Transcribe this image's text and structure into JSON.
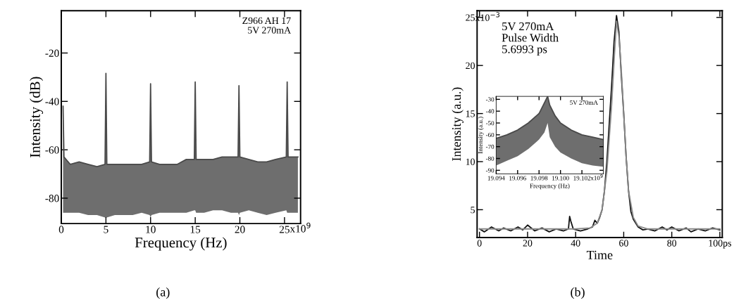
{
  "chart_data": [
    {
      "type": "line",
      "xlabel": "Frequency (Hz)",
      "ylabel": "Intensity (dB)",
      "annotations": [
        "Z966 AH 17\n5V 270mA",
        "x10$^{9}$",
        "(a)"
      ],
      "xlim": [
        0,
        26.8
      ],
      "ylim": [
        -90.5,
        -2.5
      ],
      "xticks": [
        0,
        5,
        10,
        15,
        20,
        25
      ],
      "yticks": [
        -20,
        -40,
        -60,
        -80
      ],
      "series": [
        {
          "color": "#4a4a4a",
          "x": [
            0.2,
            0.3,
            1,
            2,
            3,
            4,
            4.9,
            5.0,
            5.1,
            6,
            7,
            8,
            9,
            9.9,
            10.0,
            10.1,
            11,
            12,
            13,
            14,
            14.9,
            15.0,
            15.1,
            16,
            17,
            18,
            19,
            19.8,
            19.9,
            20.0,
            21,
            22,
            23,
            24,
            25.2,
            25.3,
            25.4,
            26.5
          ],
          "values": [
            -42,
            -63,
            -66,
            -65,
            -66,
            -67,
            -66,
            -28.4,
            -66,
            -66,
            -66,
            -66,
            -66,
            -65,
            -32.7,
            -65,
            -66,
            -66,
            -66,
            -64,
            -64,
            -32,
            -64,
            -64,
            -64,
            -63,
            -63,
            -63,
            -33.5,
            -63,
            -64,
            -65,
            -65,
            -64,
            -63,
            -32,
            -63,
            -63
          ],
          "upper": [
            -42,
            -63,
            -66,
            -65,
            -66,
            -67,
            -66,
            -28.4,
            -66,
            -66,
            -66,
            -66,
            -66,
            -65,
            -32.7,
            -65,
            -66,
            -66,
            -66,
            -64,
            -64,
            -32,
            -64,
            -64,
            -64,
            -63,
            -63,
            -63,
            -33.5,
            -63,
            -64,
            -65,
            -65,
            -64,
            -63,
            -32,
            -63,
            -63
          ],
          "lower": [
            -86,
            -86,
            -86,
            -86,
            -87,
            -87,
            -88,
            -88,
            -88,
            -87,
            -87,
            -87,
            -86,
            -87,
            -88,
            -87,
            -86,
            -86,
            -86,
            -86,
            -85,
            -85,
            -86,
            -86,
            -85,
            -85,
            -86,
            -86,
            -87,
            -86,
            -85,
            -86,
            -87,
            -86,
            -85,
            -86,
            -86,
            -86
          ]
        }
      ]
    },
    {
      "type": "line",
      "xlabel": "Time",
      "ylabel": "Intensity (a.u.)",
      "annotations": [
        "5V 270mA\nPulse Width\n5.6993 ps",
        "x10$^{−3}$",
        "(b)"
      ],
      "xlim": [
        -1,
        101
      ],
      "ylim": [
        2.1,
        25.7
      ],
      "xticks": [
        0,
        20,
        40,
        60,
        80,
        {
          "value": 100,
          "label": "100ps"
        }
      ],
      "yticks": [
        5,
        10,
        15,
        20,
        25
      ],
      "series": [
        {
          "color": "#111111",
          "x": [
            0,
            2,
            5,
            8,
            10,
            13,
            16,
            18,
            20,
            23,
            26,
            29,
            32,
            35,
            37,
            37.5,
            38,
            39,
            42,
            45,
            47,
            48,
            49,
            50,
            51,
            52,
            53,
            54,
            55,
            56,
            57,
            58,
            59,
            60,
            61,
            62,
            63,
            64,
            65,
            66,
            68,
            70,
            73,
            76,
            78,
            80,
            83,
            86,
            88,
            91,
            94,
            97,
            100
          ],
          "values": [
            3.0,
            2.7,
            3.2,
            2.8,
            3.1,
            2.8,
            3.2,
            2.9,
            3.4,
            2.8,
            3.1,
            2.7,
            3.0,
            2.8,
            3.0,
            4.3,
            3.8,
            3.0,
            2.8,
            3.0,
            3.2,
            3.9,
            3.6,
            4.2,
            5.0,
            7,
            10,
            14,
            18,
            22.5,
            25.2,
            23.5,
            19,
            15,
            10.5,
            7,
            4.8,
            4.0,
            3.6,
            3.2,
            2.9,
            3.0,
            2.8,
            3.2,
            2.9,
            3.2,
            2.8,
            3.1,
            2.7,
            3.0,
            2.8,
            3.1,
            2.9
          ]
        },
        {
          "color": "#8a8a8a",
          "x": [
            0,
            40,
            46,
            49,
            51,
            53,
            55,
            56,
            57,
            58,
            59,
            60,
            61,
            62,
            64,
            66,
            70,
            100
          ],
          "values": [
            3.0,
            3.0,
            3.1,
            3.6,
            5,
            9,
            16,
            20.5,
            24.6,
            23,
            19.5,
            15,
            10.5,
            7,
            4.2,
            3.3,
            3.0,
            3.0
          ]
        }
      ]
    },
    {
      "type": "line",
      "xlabel": "Frequency (Hz)",
      "ylabel": "Intensity (a.u.)",
      "annotations": [
        "5V 270mA",
        "x10$^{9}$"
      ],
      "xlim": [
        19.094,
        19.104
      ],
      "ylim": [
        -93,
        -27.5
      ],
      "xticks": [
        {
          "value": 19.094,
          "label": "19.094"
        },
        {
          "value": 19.096,
          "label": "19.096"
        },
        {
          "value": 19.098,
          "label": "19.098"
        },
        {
          "value": 19.1,
          "label": "19.100"
        },
        {
          "value": 19.102,
          "label": "19.102"
        }
      ],
      "yticks": [
        -30,
        -40,
        -50,
        -60,
        -70,
        -80,
        -90
      ],
      "series": [
        {
          "color": "#4a4a4a",
          "x": [
            19.094,
            19.095,
            19.096,
            19.097,
            19.098,
            19.0985,
            19.0988,
            19.099,
            19.0995,
            19.1,
            19.101,
            19.102,
            19.103,
            19.104
          ],
          "values": [
            -63,
            -60,
            -56,
            -50,
            -42,
            -33,
            -27.5,
            -35,
            -44,
            -50,
            -56,
            -60,
            -62,
            -64
          ],
          "upper": [
            -63,
            -60,
            -56,
            -50,
            -42,
            -33,
            -27.5,
            -35,
            -44,
            -50,
            -56,
            -60,
            -62,
            -64
          ],
          "lower": [
            -86,
            -82,
            -78,
            -72,
            -64,
            -58,
            -50,
            -62,
            -70,
            -75,
            -80,
            -84,
            -86,
            -87
          ]
        }
      ]
    }
  ]
}
